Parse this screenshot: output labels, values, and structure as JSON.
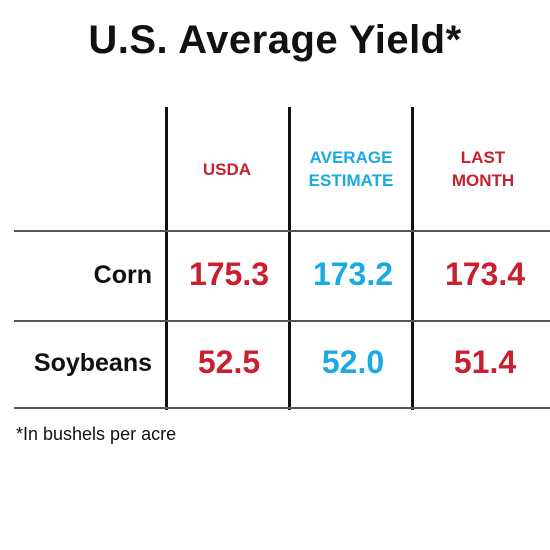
{
  "colors": {
    "usda": "#c8202f",
    "average_estimate": "#1aa9e2",
    "last_month": "#c8202f",
    "text": "#111111"
  },
  "chart_data": {
    "type": "table",
    "title": "U.S. Average Yield*",
    "columns": [
      {
        "label_line1": "USDA",
        "label_line2": ""
      },
      {
        "label_line1": "AVERAGE",
        "label_line2": "ESTIMATE"
      },
      {
        "label_line1": "LAST",
        "label_line2": "MONTH"
      }
    ],
    "rows": [
      {
        "label": "Corn",
        "values": [
          "175.3",
          "173.2",
          "173.4"
        ]
      },
      {
        "label": "Soybeans",
        "values": [
          "52.5",
          "52.0",
          "51.4"
        ]
      }
    ],
    "footnote": "*In bushels per acre"
  }
}
